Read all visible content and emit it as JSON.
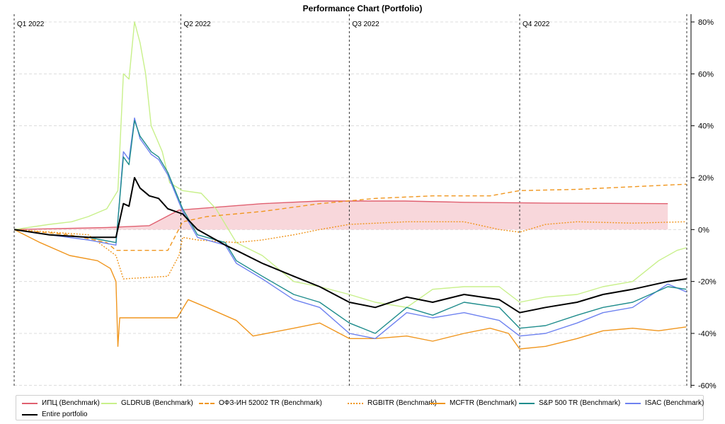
{
  "chart_data": {
    "type": "line",
    "title": "Performance Chart (Portfolio)",
    "x_range": [
      "2022-01-01",
      "2022-12-31"
    ],
    "quarter_markers": [
      {
        "label": "Q1 2022",
        "date": "2022-01-01"
      },
      {
        "label": "Q2 2022",
        "date": "2022-04-01"
      },
      {
        "label": "Q3 2022",
        "date": "2022-07-01"
      },
      {
        "label": "Q4 2022",
        "date": "2022-10-01"
      }
    ],
    "ylim": [
      -61,
      83
    ],
    "y_ticks": [
      80,
      60,
      40,
      20,
      0,
      -20,
      -40,
      -60
    ],
    "y_tick_labels": [
      "80%",
      "60%",
      "40%",
      "20%",
      "0%",
      "-20%",
      "-40%",
      "-60%"
    ],
    "y_axis_side": "right",
    "grid": true,
    "legend_position": "bottom",
    "series": [
      {
        "name": "ИПЦ (Benchmark)",
        "color": "#e06070",
        "dash": "solid",
        "fill": true,
        "points": [
          [
            "2022-01-01",
            0
          ],
          [
            "2022-02-20",
            0.8
          ],
          [
            "2022-03-15",
            1.5
          ],
          [
            "2022-03-31",
            7.5
          ],
          [
            "2022-05-15",
            10
          ],
          [
            "2022-06-15",
            11
          ],
          [
            "2022-07-31",
            11
          ],
          [
            "2022-09-01",
            10.5
          ],
          [
            "2022-10-15",
            10.2
          ],
          [
            "2022-12-20",
            10
          ]
        ]
      },
      {
        "name": "GLDRUB (Benchmark)",
        "color": "#c8f08a",
        "dash": "solid",
        "points": [
          [
            "2022-01-01",
            0
          ],
          [
            "2022-01-20",
            2
          ],
          [
            "2022-02-01",
            3
          ],
          [
            "2022-02-10",
            5
          ],
          [
            "2022-02-20",
            8
          ],
          [
            "2022-02-26",
            15
          ],
          [
            "2022-03-01",
            60
          ],
          [
            "2022-03-04",
            58
          ],
          [
            "2022-03-07",
            80
          ],
          [
            "2022-03-10",
            72
          ],
          [
            "2022-03-13",
            60
          ],
          [
            "2022-03-16",
            40
          ],
          [
            "2022-03-19",
            35
          ],
          [
            "2022-03-22",
            30
          ],
          [
            "2022-03-26",
            18
          ],
          [
            "2022-04-02",
            15
          ],
          [
            "2022-04-12",
            14
          ],
          [
            "2022-04-20",
            8
          ],
          [
            "2022-05-01",
            -5
          ],
          [
            "2022-05-15",
            -10
          ],
          [
            "2022-06-01",
            -20
          ],
          [
            "2022-06-15",
            -22
          ],
          [
            "2022-07-01",
            -25
          ],
          [
            "2022-07-15",
            -28
          ],
          [
            "2022-08-01",
            -30
          ],
          [
            "2022-08-15",
            -23
          ],
          [
            "2022-09-01",
            -22
          ],
          [
            "2022-09-20",
            -22
          ],
          [
            "2022-10-01",
            -28
          ],
          [
            "2022-10-15",
            -26
          ],
          [
            "2022-11-01",
            -25
          ],
          [
            "2022-11-15",
            -22
          ],
          [
            "2022-12-01",
            -20
          ],
          [
            "2022-12-15",
            -12
          ],
          [
            "2022-12-25",
            -8
          ],
          [
            "2022-12-30",
            -7
          ]
        ]
      },
      {
        "name": "ОФЗ-ИН 52002 TR (Benchmark)",
        "color": "#f0961e",
        "dash": "6,4",
        "points": [
          [
            "2022-01-01",
            0
          ],
          [
            "2022-01-31",
            -2
          ],
          [
            "2022-02-20",
            -5
          ],
          [
            "2022-02-25",
            -8
          ],
          [
            "2022-03-25",
            -8
          ],
          [
            "2022-04-02",
            3
          ],
          [
            "2022-04-15",
            5
          ],
          [
            "2022-05-15",
            7
          ],
          [
            "2022-06-15",
            10
          ],
          [
            "2022-07-15",
            12
          ],
          [
            "2022-08-15",
            13
          ],
          [
            "2022-09-15",
            13
          ],
          [
            "2022-10-01",
            15
          ],
          [
            "2022-11-01",
            15.5
          ],
          [
            "2022-12-01",
            16.5
          ],
          [
            "2022-12-30",
            17.5
          ]
        ]
      },
      {
        "name": "RGBITR (Benchmark)",
        "color": "#f0961e",
        "dash": "2,2",
        "points": [
          [
            "2022-01-01",
            0
          ],
          [
            "2022-02-10",
            -2
          ],
          [
            "2022-02-25",
            -10
          ],
          [
            "2022-03-01",
            -19
          ],
          [
            "2022-03-25",
            -18
          ],
          [
            "2022-03-31",
            -10
          ],
          [
            "2022-04-02",
            -3
          ],
          [
            "2022-04-10",
            -4
          ],
          [
            "2022-05-01",
            -5
          ],
          [
            "2022-05-15",
            -4
          ],
          [
            "2022-06-01",
            -2
          ],
          [
            "2022-06-15",
            0
          ],
          [
            "2022-07-01",
            2
          ],
          [
            "2022-08-01",
            3
          ],
          [
            "2022-09-01",
            3
          ],
          [
            "2022-09-20",
            0
          ],
          [
            "2022-10-01",
            -1
          ],
          [
            "2022-10-15",
            2
          ],
          [
            "2022-11-01",
            3
          ],
          [
            "2022-12-01",
            2.5
          ],
          [
            "2022-12-30",
            3
          ]
        ]
      },
      {
        "name": "MCFTR (Benchmark)",
        "color": "#f0961e",
        "dash": "solid",
        "points": [
          [
            "2022-01-01",
            0
          ],
          [
            "2022-01-15",
            -5
          ],
          [
            "2022-01-31",
            -10
          ],
          [
            "2022-02-15",
            -12
          ],
          [
            "2022-02-22",
            -15
          ],
          [
            "2022-02-25",
            -20
          ],
          [
            "2022-02-26",
            -45
          ],
          [
            "2022-02-27",
            -34
          ],
          [
            "2022-03-30",
            -34
          ],
          [
            "2022-04-05",
            -27
          ],
          [
            "2022-04-15",
            -30
          ],
          [
            "2022-05-01",
            -35
          ],
          [
            "2022-05-10",
            -41
          ],
          [
            "2022-06-01",
            -38
          ],
          [
            "2022-06-15",
            -36
          ],
          [
            "2022-07-01",
            -42
          ],
          [
            "2022-07-15",
            -42
          ],
          [
            "2022-08-01",
            -41
          ],
          [
            "2022-08-15",
            -43
          ],
          [
            "2022-09-01",
            -40
          ],
          [
            "2022-09-15",
            -38
          ],
          [
            "2022-09-25",
            -40
          ],
          [
            "2022-10-01",
            -46
          ],
          [
            "2022-10-15",
            -45
          ],
          [
            "2022-11-01",
            -42
          ],
          [
            "2022-11-15",
            -39
          ],
          [
            "2022-12-01",
            -38
          ],
          [
            "2022-12-15",
            -39
          ],
          [
            "2022-12-30",
            -37.5
          ]
        ]
      },
      {
        "name": "S&P 500 TR (Benchmark)",
        "color": "#1e8c8c",
        "dash": "solid",
        "points": [
          [
            "2022-01-01",
            0
          ],
          [
            "2022-01-20",
            -2
          ],
          [
            "2022-02-10",
            -3
          ],
          [
            "2022-02-25",
            -5
          ],
          [
            "2022-03-01",
            28
          ],
          [
            "2022-03-04",
            25
          ],
          [
            "2022-03-07",
            42
          ],
          [
            "2022-03-10",
            36
          ],
          [
            "2022-03-13",
            33
          ],
          [
            "2022-03-16",
            30
          ],
          [
            "2022-03-20",
            28
          ],
          [
            "2022-03-25",
            22
          ],
          [
            "2022-04-02",
            8
          ],
          [
            "2022-04-10",
            -2
          ],
          [
            "2022-04-25",
            -5
          ],
          [
            "2022-05-01",
            -12
          ],
          [
            "2022-05-15",
            -18
          ],
          [
            "2022-06-01",
            -25
          ],
          [
            "2022-06-15",
            -28
          ],
          [
            "2022-07-01",
            -36
          ],
          [
            "2022-07-15",
            -40
          ],
          [
            "2022-08-01",
            -30
          ],
          [
            "2022-08-15",
            -33
          ],
          [
            "2022-09-01",
            -28
          ],
          [
            "2022-09-20",
            -30
          ],
          [
            "2022-10-01",
            -38
          ],
          [
            "2022-10-15",
            -37
          ],
          [
            "2022-11-01",
            -33
          ],
          [
            "2022-11-15",
            -30
          ],
          [
            "2022-12-01",
            -28
          ],
          [
            "2022-12-20",
            -22
          ],
          [
            "2022-12-30",
            -23
          ]
        ]
      },
      {
        "name": "ISAC (Benchmark)",
        "color": "#6e82f0",
        "dash": "solid",
        "points": [
          [
            "2022-01-01",
            0
          ],
          [
            "2022-01-20",
            -2
          ],
          [
            "2022-02-10",
            -4
          ],
          [
            "2022-02-25",
            -6
          ],
          [
            "2022-03-01",
            30
          ],
          [
            "2022-03-04",
            27
          ],
          [
            "2022-03-07",
            43
          ],
          [
            "2022-03-10",
            35
          ],
          [
            "2022-03-13",
            32
          ],
          [
            "2022-03-16",
            29
          ],
          [
            "2022-03-20",
            27
          ],
          [
            "2022-03-25",
            21
          ],
          [
            "2022-04-02",
            7
          ],
          [
            "2022-04-10",
            -3
          ],
          [
            "2022-04-25",
            -6
          ],
          [
            "2022-05-01",
            -13
          ],
          [
            "2022-05-15",
            -19
          ],
          [
            "2022-06-01",
            -27
          ],
          [
            "2022-06-15",
            -30
          ],
          [
            "2022-07-01",
            -40
          ],
          [
            "2022-07-15",
            -42
          ],
          [
            "2022-08-01",
            -32
          ],
          [
            "2022-08-15",
            -34
          ],
          [
            "2022-09-01",
            -32
          ],
          [
            "2022-09-20",
            -35
          ],
          [
            "2022-10-01",
            -41
          ],
          [
            "2022-10-15",
            -40
          ],
          [
            "2022-11-01",
            -36
          ],
          [
            "2022-11-15",
            -32
          ],
          [
            "2022-12-01",
            -30
          ],
          [
            "2022-12-20",
            -21
          ],
          [
            "2022-12-30",
            -24
          ]
        ]
      },
      {
        "name": "Entire portfolio",
        "color": "#000000",
        "dash": "solid",
        "width": 2,
        "points": [
          [
            "2022-01-01",
            0
          ],
          [
            "2022-01-20",
            -2
          ],
          [
            "2022-02-10",
            -3
          ],
          [
            "2022-02-25",
            -3
          ],
          [
            "2022-03-01",
            10
          ],
          [
            "2022-03-04",
            9
          ],
          [
            "2022-03-07",
            20
          ],
          [
            "2022-03-10",
            16
          ],
          [
            "2022-03-15",
            13
          ],
          [
            "2022-03-20",
            12
          ],
          [
            "2022-03-25",
            8
          ],
          [
            "2022-04-02",
            6
          ],
          [
            "2022-04-10",
            0
          ],
          [
            "2022-04-25",
            -6
          ],
          [
            "2022-05-01",
            -8
          ],
          [
            "2022-05-15",
            -13
          ],
          [
            "2022-06-01",
            -18
          ],
          [
            "2022-06-15",
            -22
          ],
          [
            "2022-07-01",
            -28
          ],
          [
            "2022-07-15",
            -30
          ],
          [
            "2022-08-01",
            -26
          ],
          [
            "2022-08-15",
            -28
          ],
          [
            "2022-09-01",
            -25
          ],
          [
            "2022-09-20",
            -27
          ],
          [
            "2022-10-01",
            -32
          ],
          [
            "2022-10-15",
            -30
          ],
          [
            "2022-11-01",
            -28
          ],
          [
            "2022-11-15",
            -25
          ],
          [
            "2022-12-01",
            -23
          ],
          [
            "2022-12-20",
            -20
          ],
          [
            "2022-12-30",
            -19
          ]
        ]
      }
    ]
  }
}
